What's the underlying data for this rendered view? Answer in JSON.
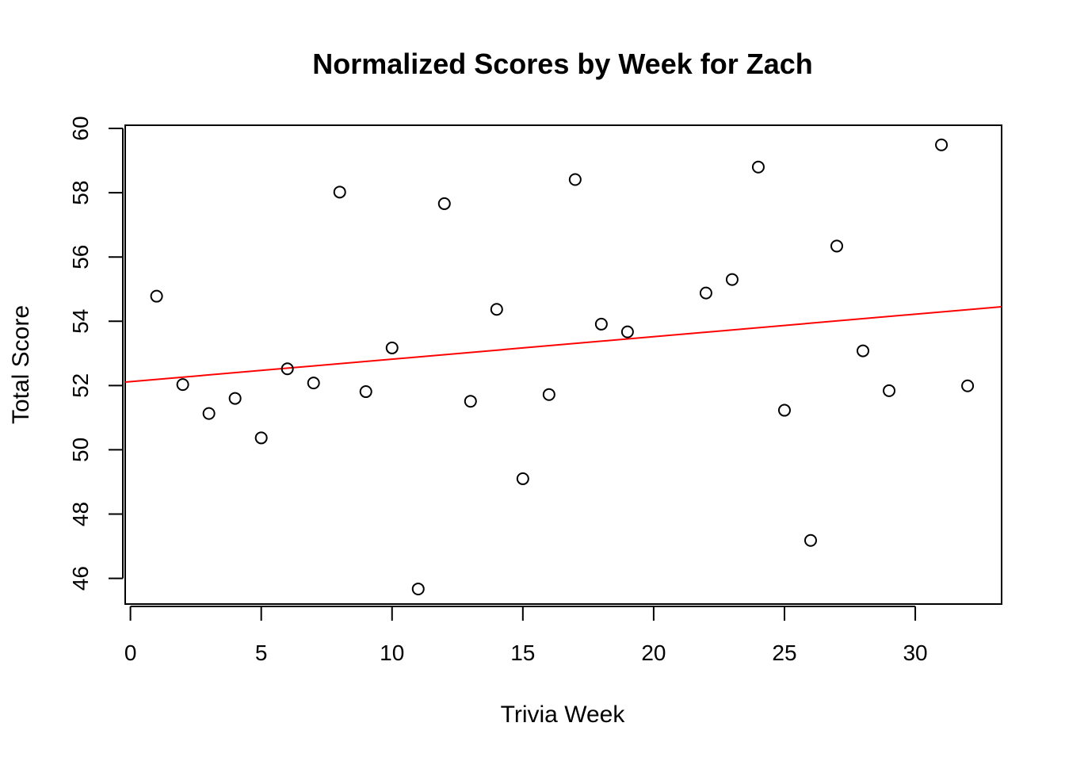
{
  "chart_data": {
    "type": "scatter",
    "title": "Normalized Scores by Week for Zach",
    "xlabel": "Trivia Week",
    "ylabel": "Total Score",
    "xlim": [
      -0.2,
      33.3
    ],
    "ylim": [
      45.2,
      60.1
    ],
    "x_ticks": [
      0,
      5,
      10,
      15,
      20,
      25,
      30
    ],
    "y_ticks": [
      46,
      48,
      50,
      52,
      54,
      56,
      58,
      60
    ],
    "grid": false,
    "legend": "none",
    "point_color": "#000000",
    "trend_color": "#ff0000",
    "points": [
      {
        "x": 1,
        "y": 54.78
      },
      {
        "x": 2,
        "y": 52.03
      },
      {
        "x": 3,
        "y": 51.13
      },
      {
        "x": 4,
        "y": 51.6
      },
      {
        "x": 5,
        "y": 50.37
      },
      {
        "x": 6,
        "y": 52.52
      },
      {
        "x": 7,
        "y": 52.08
      },
      {
        "x": 8,
        "y": 58.02
      },
      {
        "x": 9,
        "y": 51.81
      },
      {
        "x": 10,
        "y": 53.17
      },
      {
        "x": 11,
        "y": 45.67
      },
      {
        "x": 12,
        "y": 57.66
      },
      {
        "x": 13,
        "y": 51.51
      },
      {
        "x": 14,
        "y": 54.37
      },
      {
        "x": 15,
        "y": 49.1
      },
      {
        "x": 16,
        "y": 51.72
      },
      {
        "x": 17,
        "y": 58.41
      },
      {
        "x": 18,
        "y": 53.91
      },
      {
        "x": 19,
        "y": 53.67
      },
      {
        "x": 22,
        "y": 54.88
      },
      {
        "x": 23,
        "y": 55.3
      },
      {
        "x": 24,
        "y": 58.8
      },
      {
        "x": 25,
        "y": 51.23
      },
      {
        "x": 26,
        "y": 47.18
      },
      {
        "x": 27,
        "y": 56.34
      },
      {
        "x": 28,
        "y": 53.08
      },
      {
        "x": 29,
        "y": 51.84
      },
      {
        "x": 31,
        "y": 59.49
      },
      {
        "x": 32,
        "y": 51.99
      }
    ],
    "trend_line": {
      "intercept": 52.12,
      "slope": 0.07
    }
  }
}
